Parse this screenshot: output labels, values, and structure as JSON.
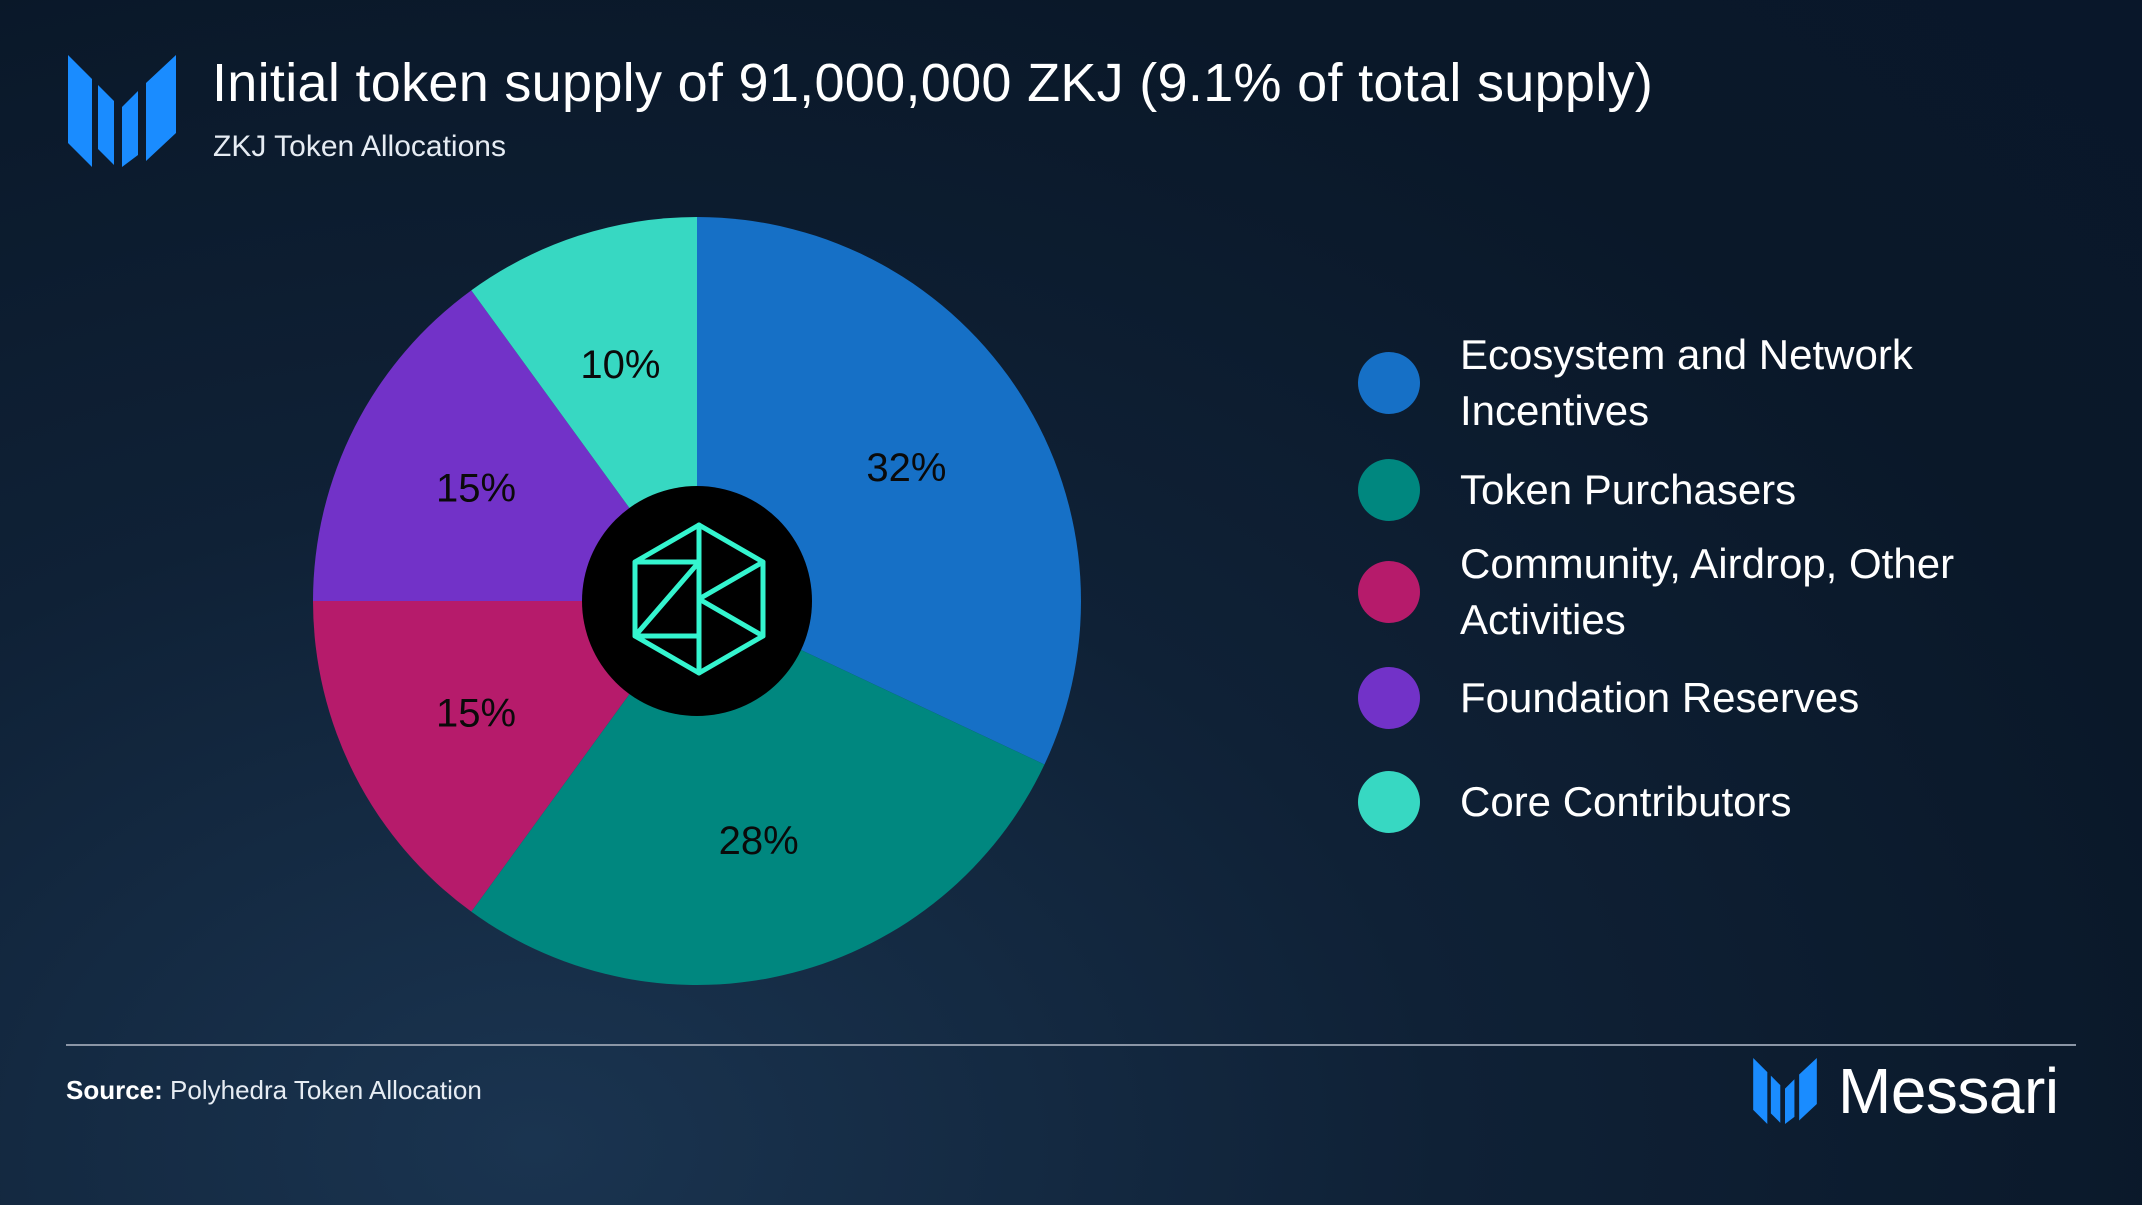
{
  "header": {
    "title": "Initial token supply of 91,000,000 ZKJ (9.1% of total supply)",
    "subtitle": "ZKJ Token Allocations",
    "logo_icon": "messari-logo-icon"
  },
  "chart_data": {
    "type": "pie",
    "title": "Initial token supply of 91,000,000 ZKJ (9.1% of total supply)",
    "subtitle": "ZKJ Token Allocations",
    "center_icon": "zk-hexagon-logo-icon",
    "slices": [
      {
        "label": "Ecosystem and Network Incentives",
        "value": 32,
        "display": "32%",
        "color": "#1670c6"
      },
      {
        "label": "Token Purchasers",
        "value": 28,
        "display": "28%",
        "color": "#00877f"
      },
      {
        "label": "Community, Airdrop, Other Activities",
        "value": 15,
        "display": "15%",
        "color": "#b61b6b"
      },
      {
        "label": "Foundation Reserves",
        "value": 15,
        "display": "15%",
        "color": "#7232c8"
      },
      {
        "label": "Core Contributors",
        "value": 10,
        "display": "10%",
        "color": "#37d8c2"
      }
    ],
    "legend_position": "right"
  },
  "legend": {
    "items": [
      {
        "label": "Ecosystem and Network Incentives",
        "color": "#1670c6"
      },
      {
        "label": "Token Purchasers",
        "color": "#00877f"
      },
      {
        "label": "Community, Airdrop, Other Activities",
        "color": "#b61b6b"
      },
      {
        "label": "Foundation Reserves",
        "color": "#7232c8"
      },
      {
        "label": "Core Contributors",
        "color": "#37d8c2"
      }
    ]
  },
  "footer": {
    "source_label": "Source:",
    "source_text": "Polyhedra Token Allocation",
    "brand_name": "Messari",
    "brand_icon": "messari-logo-icon"
  },
  "colors": {
    "brand_blue": "#1a8cff",
    "zk_teal": "#34f5cf",
    "background": "#0b1a2c"
  }
}
